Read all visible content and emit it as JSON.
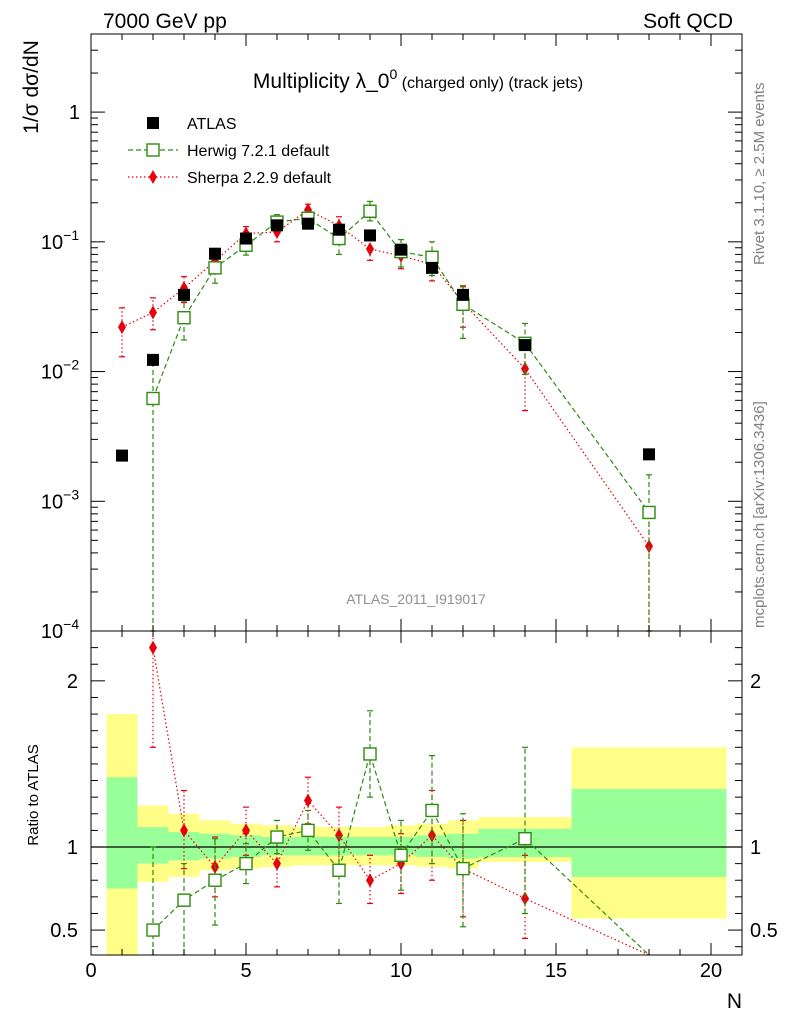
{
  "header": {
    "left": "7000 GeV pp",
    "right": "Soft QCD"
  },
  "title": {
    "main": "Multiplicity λ_0",
    "sup": "0",
    "sub": " (charged only) (track jets)"
  },
  "side_labels": {
    "top": "Rivet 3.1.10, ≥ 2.5M events",
    "bottom": "mcplots.cern.ch [arXiv:1306.3436]"
  },
  "analysis_id": "ATLAS_2011_I919017",
  "colors": {
    "atlas": "#000000",
    "herwig": "#2f8a10",
    "sherpa": "#e8000b",
    "band_yellow": "#ffff88",
    "band_green": "#99ff99"
  },
  "chart_data": [
    {
      "type": "scatter",
      "panel": "main",
      "ylabel": "1/σ dσ/dN",
      "yscale": "log",
      "ylim": [
        0.0001,
        4
      ],
      "xlim": [
        0,
        21
      ],
      "y_ticks": [
        {
          "value": 1,
          "base": "1",
          "exp": ""
        },
        {
          "value": 0.1,
          "base": "10",
          "exp": "−1"
        },
        {
          "value": 0.01,
          "base": "10",
          "exp": "−2"
        },
        {
          "value": 0.001,
          "base": "10",
          "exp": "−3"
        },
        {
          "value": 0.0001,
          "base": "10",
          "exp": "−4"
        }
      ],
      "legend": {
        "position": "top-left",
        "entries": [
          {
            "label": "ATLAS",
            "series": "atlas"
          },
          {
            "label": "Herwig 7.2.1 default",
            "series": "herwig"
          },
          {
            "label": "Sherpa 2.2.9 default",
            "series": "sherpa"
          }
        ]
      },
      "series": {
        "atlas": {
          "x": [
            1,
            2,
            3,
            4,
            5,
            6,
            7,
            8,
            9,
            10,
            11,
            12,
            14,
            18
          ],
          "y": [
            0.00225,
            0.0123,
            0.039,
            0.081,
            0.106,
            0.134,
            0.138,
            0.124,
            0.112,
            0.087,
            0.063,
            0.039,
            0.016,
            0.0023
          ]
        },
        "herwig": {
          "x": [
            2,
            3,
            4,
            5,
            6,
            7,
            8,
            9,
            10,
            11,
            12,
            14,
            18
          ],
          "y": [
            0.0062,
            0.026,
            0.063,
            0.094,
            0.142,
            0.152,
            0.106,
            0.172,
            0.084,
            0.076,
            0.033,
            0.0165,
            0.00082
          ],
          "ylow": [
            0.0001,
            0.0175,
            0.048,
            0.079,
            0.125,
            0.134,
            0.08,
            0.145,
            0.064,
            0.055,
            0.018,
            0.0095,
            0.0001
          ],
          "yhigh": [
            0.0125,
            0.035,
            0.078,
            0.112,
            0.162,
            0.171,
            0.134,
            0.205,
            0.104,
            0.1,
            0.046,
            0.0235,
            0.0016
          ]
        },
        "sherpa": {
          "x": [
            1,
            2,
            3,
            4,
            5,
            6,
            7,
            8,
            9,
            10,
            11,
            12,
            14,
            18
          ],
          "y": [
            0.022,
            0.0285,
            0.044,
            0.071,
            0.116,
            0.119,
            0.176,
            0.133,
            0.088,
            0.078,
            0.067,
            0.034,
            0.0105,
            0.00045
          ],
          "ylow": [
            0.013,
            0.021,
            0.034,
            0.058,
            0.1,
            0.1,
            0.158,
            0.11,
            0.072,
            0.062,
            0.05,
            0.022,
            0.005,
            0.0001
          ],
          "yhigh": [
            0.031,
            0.037,
            0.054,
            0.084,
            0.131,
            0.138,
            0.195,
            0.156,
            0.104,
            0.094,
            0.083,
            0.045,
            0.0165,
            0.00085
          ]
        }
      }
    },
    {
      "type": "scatter",
      "panel": "ratio",
      "ylabel": "Ratio to ATLAS",
      "xlabel": "N",
      "ylim": [
        0.35,
        2.3
      ],
      "xlim": [
        0,
        21
      ],
      "y_ticks": [
        0.5,
        1,
        2
      ],
      "y_tick_labels": [
        "0.5",
        "1",
        "2"
      ],
      "x_ticks": [
        0,
        5,
        10,
        15,
        20
      ],
      "x_tick_labels": [
        "0",
        "5",
        "10",
        "15",
        "20"
      ],
      "reference_line": 1,
      "bands": {
        "x_edges": [
          0.5,
          1.5,
          2.5,
          3.5,
          4.5,
          5.5,
          6.5,
          7.5,
          8.5,
          9.5,
          10.5,
          11.5,
          12.5,
          15.5,
          20.5
        ],
        "yellow_low": [
          0.3,
          0.79,
          0.82,
          0.86,
          0.87,
          0.88,
          0.89,
          0.89,
          0.89,
          0.89,
          0.88,
          0.87,
          0.91,
          0.57
        ],
        "yellow_high": [
          1.8,
          1.25,
          1.2,
          1.16,
          1.14,
          1.13,
          1.12,
          1.12,
          1.12,
          1.13,
          1.14,
          1.16,
          1.18,
          1.6
        ],
        "green_low": [
          0.75,
          0.9,
          0.92,
          0.93,
          0.94,
          0.95,
          0.95,
          0.95,
          0.95,
          0.95,
          0.94,
          0.93,
          0.94,
          0.82
        ],
        "green_high": [
          1.42,
          1.12,
          1.09,
          1.08,
          1.07,
          1.06,
          1.06,
          1.06,
          1.06,
          1.06,
          1.07,
          1.08,
          1.11,
          1.35
        ]
      },
      "series": {
        "herwig": {
          "x": [
            2,
            3,
            4,
            5,
            6,
            7,
            8,
            9,
            10,
            11,
            12,
            14,
            18
          ],
          "y": [
            0.5,
            0.68,
            0.8,
            0.9,
            1.06,
            1.1,
            0.86,
            1.56,
            0.95,
            1.22,
            0.87,
            1.05,
            0.3
          ],
          "ylow": [
            0.3,
            0.3,
            0.53,
            0.78,
            0.96,
            0.98,
            0.66,
            1.3,
            0.74,
            0.9,
            0.52,
            0.6,
            0.3
          ],
          "yhigh": [
            1.0,
            0.9,
            1.05,
            1.02,
            1.16,
            1.22,
            1.06,
            1.82,
            1.16,
            1.55,
            1.2,
            1.6,
            0.3
          ]
        },
        "sherpa": {
          "x": [
            2,
            3,
            4,
            5,
            6,
            7,
            8,
            9,
            10,
            11,
            12,
            14,
            18
          ],
          "y": [
            2.2,
            1.1,
            0.88,
            1.1,
            0.9,
            1.28,
            1.07,
            0.8,
            0.9,
            1.07,
            0.87,
            0.69,
            0.2
          ],
          "ylow": [
            1.6,
            0.87,
            0.7,
            0.95,
            0.76,
            1.14,
            0.89,
            0.66,
            0.72,
            0.8,
            0.58,
            0.45,
            0.2
          ],
          "yhigh": [
            2.4,
            1.34,
            1.06,
            1.24,
            1.05,
            1.42,
            1.24,
            0.95,
            1.08,
            1.34,
            1.16,
            0.95,
            0.2
          ]
        }
      }
    }
  ]
}
